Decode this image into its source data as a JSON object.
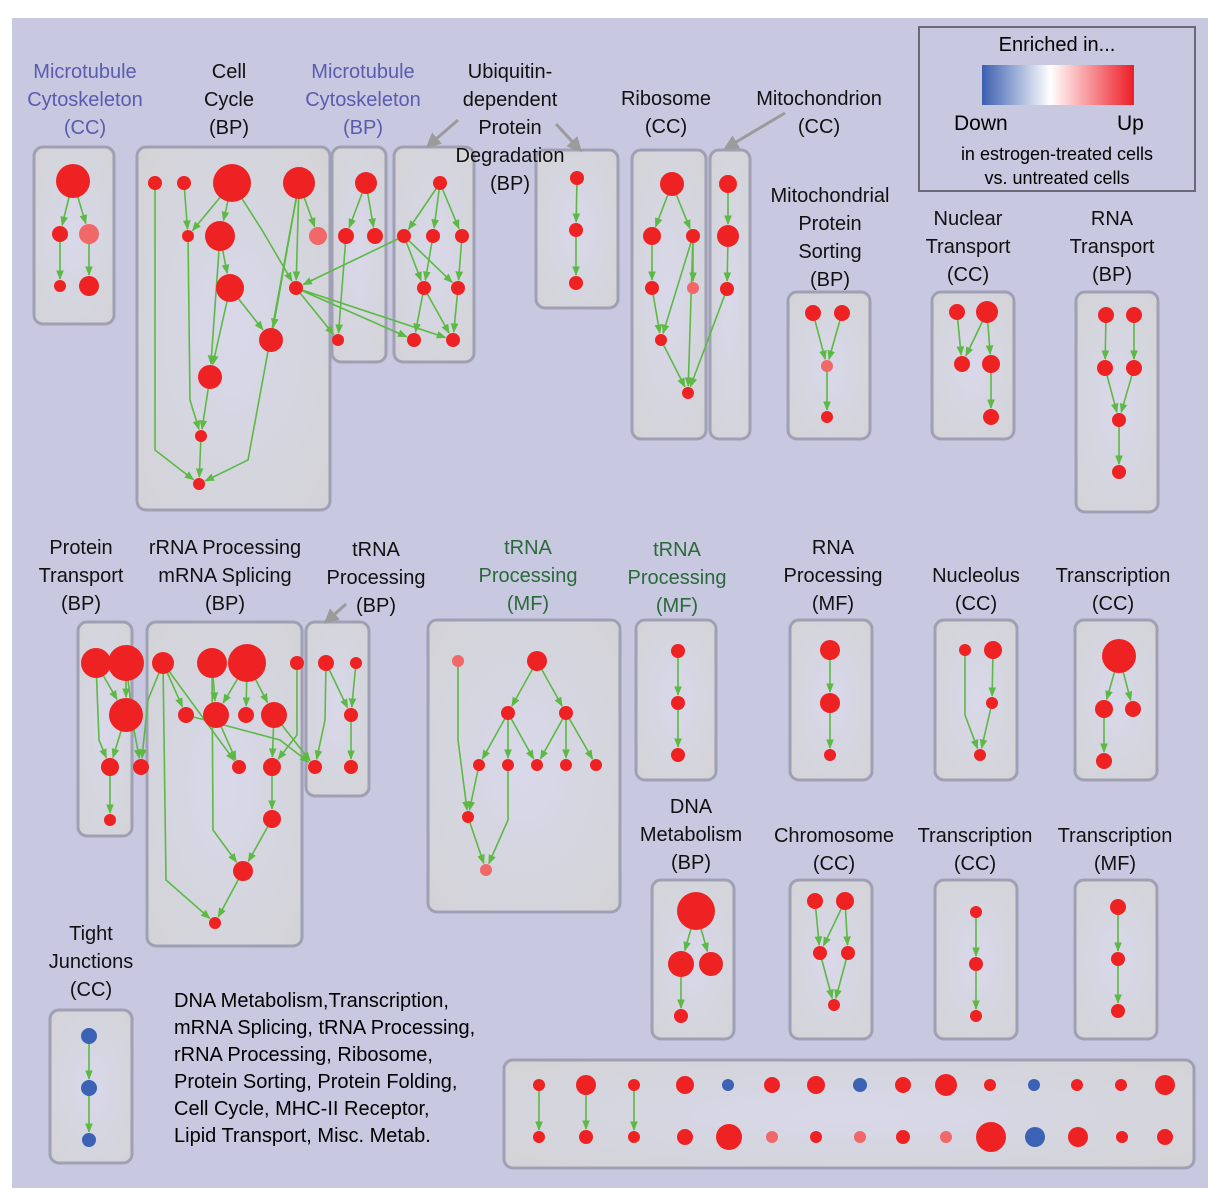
{
  "colors": {
    "background": "#c8c8e0",
    "panel": "#d9d9e6",
    "panel_border": "#a0a0b4",
    "edge": "#5cb944",
    "up_node": "#ee2222",
    "light_up_node": "#f06868",
    "down_node": "#3b62b4",
    "arrow": "#9b9b9b",
    "blue_label": "#5b5bb0",
    "green_label": "#2a6a3a",
    "black_label": "#111111"
  },
  "legend": {
    "title": "Enriched in...",
    "down_label": "Down",
    "up_label": "Up",
    "subtitle_1": "in estrogen-treated cells",
    "subtitle_2": "vs. untreated cells"
  },
  "labels": [
    {
      "id": "mt-cc",
      "lines": [
        "Microtubule",
        "Cytoskeleton",
        "(CC)"
      ],
      "color": "blue"
    },
    {
      "id": "cell-cycle",
      "lines": [
        "Cell",
        "Cycle",
        "(BP)"
      ],
      "color": "black"
    },
    {
      "id": "mt-bp",
      "lines": [
        "Microtubule",
        "Cytoskeleton",
        "(BP)"
      ],
      "color": "blue"
    },
    {
      "id": "ubiq",
      "lines": [
        "Ubiquitin-",
        "dependent",
        "Protein",
        "Degradation",
        "(BP)"
      ],
      "color": "black"
    },
    {
      "id": "ribosome",
      "lines": [
        "Ribosome",
        "(CC)"
      ],
      "color": "black"
    },
    {
      "id": "mito",
      "lines": [
        "Mitochondrion",
        "(CC)"
      ],
      "color": "black"
    },
    {
      "id": "mito-sort",
      "lines": [
        "Mitochondrial",
        "Protein",
        "Sorting",
        "(BP)"
      ],
      "color": "black"
    },
    {
      "id": "nuc-transport",
      "lines": [
        "Nuclear",
        "Transport",
        "(CC)"
      ],
      "color": "black"
    },
    {
      "id": "rna-transport",
      "lines": [
        "RNA",
        "Transport",
        "(BP)"
      ],
      "color": "black"
    },
    {
      "id": "prot-transport",
      "lines": [
        "Protein",
        "Transport",
        "(BP)"
      ],
      "color": "black"
    },
    {
      "id": "rrna",
      "lines": [
        "rRNA Processing",
        "mRNA Splicing",
        "(BP)"
      ],
      "color": "black"
    },
    {
      "id": "trna-bp",
      "lines": [
        "tRNA",
        "Processing",
        "(BP)"
      ],
      "color": "black"
    },
    {
      "id": "trna-mf1",
      "lines": [
        "tRNA",
        "Processing",
        "(MF)"
      ],
      "color": "green"
    },
    {
      "id": "trna-mf2",
      "lines": [
        "tRNA",
        "Processing",
        "(MF)"
      ],
      "color": "green"
    },
    {
      "id": "rna-proc",
      "lines": [
        "RNA",
        "Processing",
        "(MF)"
      ],
      "color": "black"
    },
    {
      "id": "nucleolus",
      "lines": [
        "Nucleolus",
        "(CC)"
      ],
      "color": "black"
    },
    {
      "id": "transcription-cc1",
      "lines": [
        "Transcription",
        "(CC)"
      ],
      "color": "black"
    },
    {
      "id": "dna-meta",
      "lines": [
        "DNA",
        "Metabolism",
        "(BP)"
      ],
      "color": "black"
    },
    {
      "id": "chromosome",
      "lines": [
        "Chromosome",
        "(CC)"
      ],
      "color": "black"
    },
    {
      "id": "transcription-cc2",
      "lines": [
        "Transcription",
        "(CC)"
      ],
      "color": "black"
    },
    {
      "id": "transcription-mf",
      "lines": [
        "Transcription",
        "(MF)"
      ],
      "color": "black"
    },
    {
      "id": "tight",
      "lines": [
        "Tight",
        "Junctions",
        "(CC)"
      ],
      "color": "black"
    }
  ],
  "misc_text": [
    "DNA Metabolism,Transcription,",
    "mRNA Splicing, tRNA Processing,",
    "rRNA Processing, Ribosome,",
    "Protein Sorting, Protein Folding,",
    "Cell Cycle, MHC-II Receptor,",
    "Lipid Transport, Misc. Metab."
  ]
}
